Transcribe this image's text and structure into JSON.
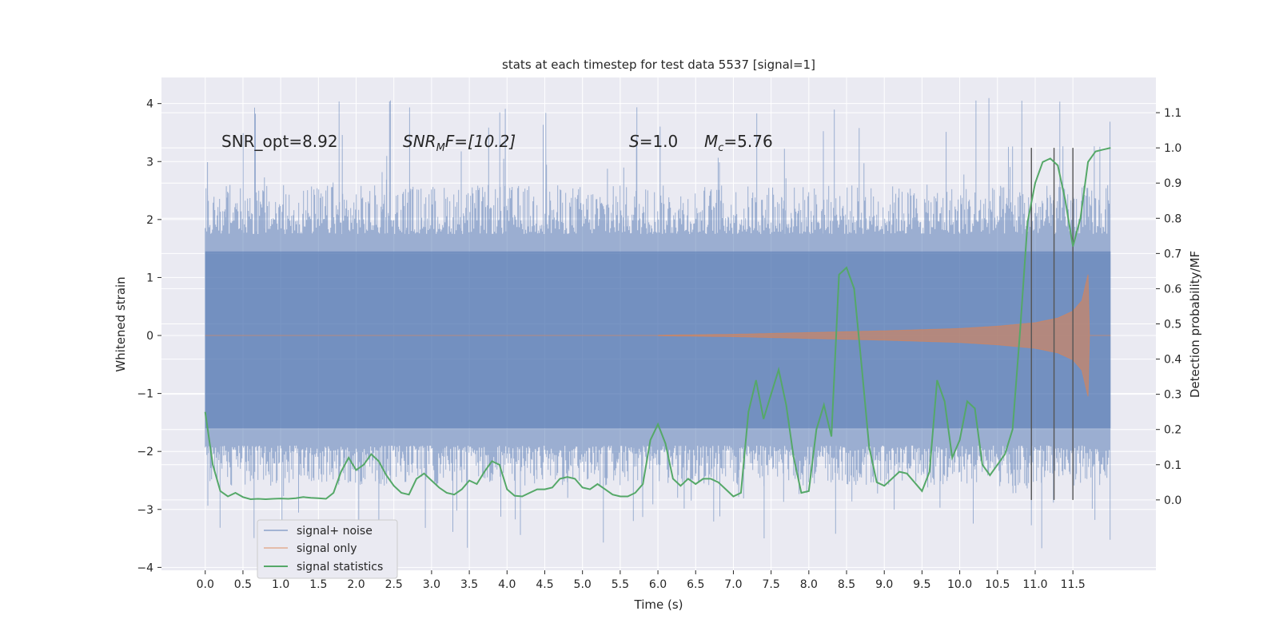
{
  "chart_data": {
    "type": "line",
    "title": "stats at each timestep for test data 5537 [signal=1]",
    "xlabel": "Time (s)",
    "ylabel": "Whitened strain",
    "ylabel_right": "Detection probability/MF",
    "xlim": [
      -0.58,
      12.6
    ],
    "ylim": [
      -4.05,
      4.45
    ],
    "ylim_right": [
      -0.2,
      1.2
    ],
    "x_ticks": [
      "0.0",
      "0.5",
      "1.0",
      "1.5",
      "2.0",
      "2.5",
      "3.0",
      "3.5",
      "4.0",
      "4.5",
      "5.0",
      "5.5",
      "6.0",
      "6.5",
      "7.0",
      "7.5",
      "8.0",
      "8.5",
      "9.0",
      "9.5",
      "10.0",
      "10.5",
      "11.0",
      "11.5"
    ],
    "y_ticks": [
      "4",
      "3",
      "2",
      "1",
      "0",
      "−1",
      "−2",
      "−3",
      "−4"
    ],
    "y_ticks_right": [
      "1.1",
      "1.0",
      "0.9",
      "0.8",
      "0.7",
      "0.6",
      "0.5",
      "0.4",
      "0.3",
      "0.2",
      "0.1",
      "0.0"
    ],
    "grid": true,
    "legend_position": "lower-left",
    "colors": {
      "background": "#eaeaf2",
      "grid": "#ffffff",
      "signal_noise": "#4c72b0",
      "signal_only": "#dd8452",
      "statistics": "#55a868",
      "vlines": "#555555"
    },
    "annotations": {
      "snr_opt": "SNR_opt=8.92",
      "snr_mf_sym": "SNR",
      "snr_mf_sub": "M",
      "snr_mf_rest": "F=[10.2]",
      "s_sym": "S",
      "s_rest": "=1.0",
      "mc_sym": "M",
      "mc_sub": "c",
      "mc_rest": "=5.76"
    },
    "noise_band": {
      "x_range": [
        0.0,
        12.0
      ],
      "dense_range": [
        -1.6,
        1.45
      ],
      "envelope_range": [
        -2.0,
        2.0
      ],
      "max": 4.1,
      "min": -3.7
    },
    "vertical_lines": [
      10.95,
      11.25,
      11.5
    ],
    "vertical_lines_yrange": [
      -0.0,
      1.0
    ],
    "series": [
      {
        "name": "signal+ noise",
        "style": "band"
      },
      {
        "name": "signal only",
        "style": "chirp",
        "onset": 6.0,
        "merger": 11.7,
        "amplitudes": [
          [
            6.0,
            0.005
          ],
          [
            7.0,
            0.02
          ],
          [
            8.0,
            0.05
          ],
          [
            9.0,
            0.08
          ],
          [
            10.0,
            0.12
          ],
          [
            10.5,
            0.16
          ],
          [
            11.0,
            0.22
          ],
          [
            11.3,
            0.3
          ],
          [
            11.5,
            0.42
          ],
          [
            11.62,
            0.6
          ],
          [
            11.7,
            1.05
          ],
          [
            11.72,
            0.0
          ]
        ]
      },
      {
        "name": "signal statistics",
        "style": "line",
        "axis": "right",
        "x": [
          0.0,
          0.1,
          0.2,
          0.3,
          0.4,
          0.5,
          0.6,
          0.7,
          0.8,
          0.9,
          1.0,
          1.1,
          1.2,
          1.3,
          1.4,
          1.5,
          1.6,
          1.7,
          1.8,
          1.9,
          2.0,
          2.1,
          2.2,
          2.3,
          2.4,
          2.5,
          2.6,
          2.7,
          2.8,
          2.9,
          3.0,
          3.1,
          3.2,
          3.3,
          3.4,
          3.5,
          3.6,
          3.7,
          3.8,
          3.9,
          4.0,
          4.1,
          4.2,
          4.3,
          4.4,
          4.5,
          4.6,
          4.7,
          4.8,
          4.9,
          5.0,
          5.1,
          5.2,
          5.3,
          5.4,
          5.5,
          5.6,
          5.7,
          5.8,
          5.9,
          6.0,
          6.1,
          6.2,
          6.3,
          6.4,
          6.5,
          6.6,
          6.7,
          6.8,
          6.9,
          7.0,
          7.1,
          7.2,
          7.3,
          7.4,
          7.5,
          7.6,
          7.7,
          7.8,
          7.9,
          8.0,
          8.1,
          8.2,
          8.3,
          8.4,
          8.5,
          8.6,
          8.7,
          8.8,
          8.9,
          9.0,
          9.1,
          9.2,
          9.3,
          9.4,
          9.5,
          9.6,
          9.7,
          9.8,
          9.9,
          10.0,
          10.1,
          10.2,
          10.3,
          10.4,
          10.5,
          10.6,
          10.7,
          10.8,
          10.9,
          11.0,
          11.1,
          11.2,
          11.3,
          11.4,
          11.5,
          11.6,
          11.7,
          11.8,
          11.9,
          12.0
        ],
        "values": [
          0.25,
          0.1,
          0.025,
          0.01,
          0.02,
          0.008,
          0.002,
          0.003,
          0.002,
          0.003,
          0.004,
          0.003,
          0.005,
          0.008,
          0.006,
          0.005,
          0.003,
          0.02,
          0.08,
          0.12,
          0.085,
          0.1,
          0.13,
          0.11,
          0.07,
          0.04,
          0.02,
          0.015,
          0.06,
          0.075,
          0.055,
          0.035,
          0.02,
          0.015,
          0.03,
          0.055,
          0.045,
          0.08,
          0.11,
          0.1,
          0.03,
          0.012,
          0.01,
          0.02,
          0.03,
          0.03,
          0.035,
          0.06,
          0.065,
          0.06,
          0.035,
          0.03,
          0.045,
          0.03,
          0.015,
          0.01,
          0.01,
          0.02,
          0.045,
          0.17,
          0.215,
          0.16,
          0.06,
          0.04,
          0.06,
          0.045,
          0.06,
          0.06,
          0.05,
          0.03,
          0.01,
          0.02,
          0.25,
          0.34,
          0.23,
          0.3,
          0.37,
          0.27,
          0.12,
          0.02,
          0.025,
          0.2,
          0.27,
          0.18,
          0.64,
          0.66,
          0.6,
          0.38,
          0.15,
          0.05,
          0.04,
          0.06,
          0.08,
          0.075,
          0.05,
          0.025,
          0.08,
          0.34,
          0.28,
          0.12,
          0.17,
          0.28,
          0.26,
          0.1,
          0.07,
          0.1,
          0.13,
          0.2,
          0.48,
          0.79,
          0.9,
          0.96,
          0.97,
          0.95,
          0.85,
          0.72,
          0.8,
          0.96,
          0.99,
          0.995,
          1.0
        ]
      }
    ]
  }
}
